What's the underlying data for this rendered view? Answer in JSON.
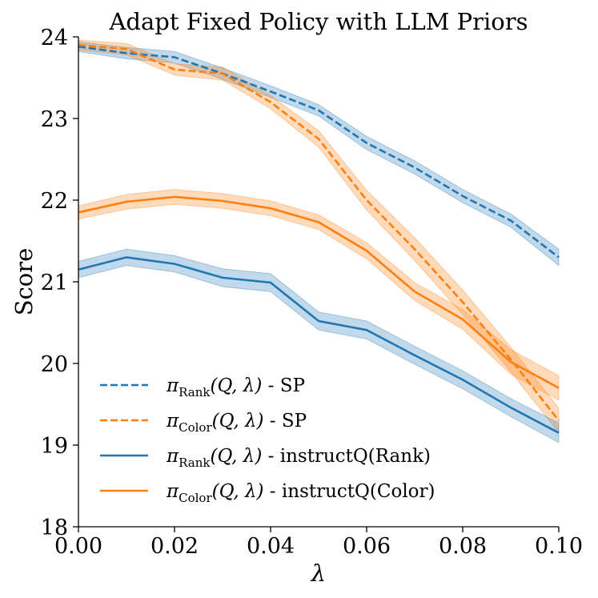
{
  "chart_data": {
    "type": "line",
    "title": "Adapt Fixed Policy with LLM Priors",
    "xlabel": "λ",
    "ylabel": "Score",
    "xlim": [
      0.0,
      0.1
    ],
    "ylim": [
      18,
      24
    ],
    "x": [
      0.0,
      0.01,
      0.02,
      0.03,
      0.04,
      0.05,
      0.06,
      0.07,
      0.08,
      0.09,
      0.1
    ],
    "x_tick_labels": [
      "0.00",
      "0.02",
      "0.04",
      "0.06",
      "0.08",
      "0.10"
    ],
    "y_tick_labels": [
      "18",
      "19",
      "20",
      "21",
      "22",
      "23",
      "24"
    ],
    "x_ticks": [
      0.0,
      0.02,
      0.04,
      0.06,
      0.08,
      0.1
    ],
    "y_ticks": [
      18,
      19,
      20,
      21,
      22,
      23,
      24
    ],
    "legend_position": "lower-left",
    "series": [
      {
        "name": "π_Rank(Q, λ) - SP",
        "legend_base": "π",
        "legend_sub": "Rank",
        "legend_args": "(Q, λ)",
        "legend_suffix": " - SP",
        "color": "#1f77b4",
        "style": "dashed",
        "values": [
          23.88,
          23.8,
          23.75,
          23.55,
          23.33,
          23.1,
          22.7,
          22.4,
          22.05,
          21.75,
          21.3
        ],
        "band": [
          0.06,
          0.07,
          0.07,
          0.07,
          0.07,
          0.07,
          0.08,
          0.08,
          0.08,
          0.08,
          0.1
        ]
      },
      {
        "name": "π_Color(Q, λ) - SP",
        "legend_base": "π",
        "legend_sub": "Color",
        "legend_args": "(Q, λ)",
        "legend_suffix": " - SP",
        "color": "#ff7f0e",
        "style": "dashed",
        "values": [
          23.9,
          23.85,
          23.6,
          23.55,
          23.2,
          22.75,
          22.0,
          21.4,
          20.75,
          20.05,
          19.3
        ],
        "band": [
          0.06,
          0.07,
          0.07,
          0.08,
          0.08,
          0.1,
          0.12,
          0.14,
          0.15,
          0.15,
          0.15
        ]
      },
      {
        "name": "π_Rank(Q, λ) - instructQ(Rank)",
        "legend_base": "π",
        "legend_sub": "Rank",
        "legend_args": "(Q, λ)",
        "legend_suffix": " - instructQ(Rank)",
        "color": "#1f77b4",
        "style": "solid",
        "values": [
          21.15,
          21.3,
          21.22,
          21.05,
          20.99,
          20.52,
          20.41,
          20.1,
          19.8,
          19.46,
          19.15
        ],
        "band": [
          0.1,
          0.1,
          0.1,
          0.11,
          0.11,
          0.11,
          0.11,
          0.11,
          0.11,
          0.11,
          0.12
        ]
      },
      {
        "name": "π_Color(Q, λ) - instructQ(Color)",
        "legend_base": "π",
        "legend_sub": "Color",
        "legend_args": "(Q, λ)",
        "legend_suffix": " - instructQ(Color)",
        "color": "#ff7f0e",
        "style": "solid",
        "values": [
          21.85,
          21.98,
          22.04,
          21.99,
          21.9,
          21.73,
          21.38,
          20.88,
          20.54,
          20.02,
          19.7
        ],
        "band": [
          0.08,
          0.09,
          0.09,
          0.09,
          0.09,
          0.09,
          0.1,
          0.11,
          0.12,
          0.15,
          0.15
        ]
      }
    ]
  }
}
